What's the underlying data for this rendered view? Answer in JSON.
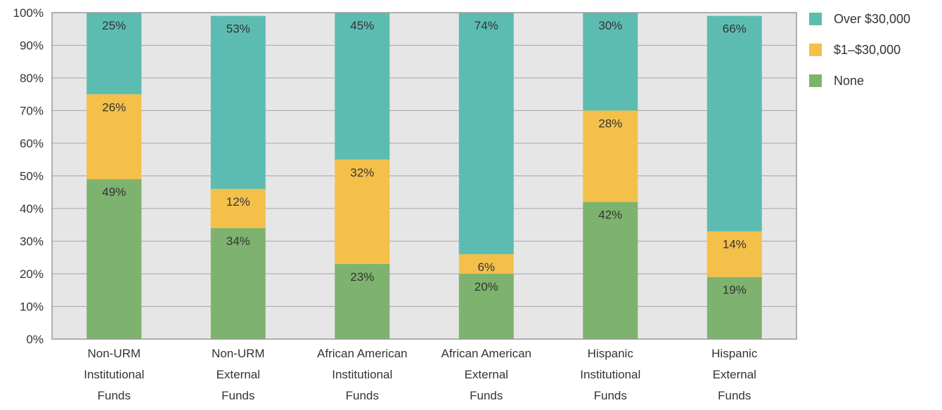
{
  "chart_data": {
    "type": "bar",
    "stacked": true,
    "categories": [
      [
        "Non-URM",
        "Institutional",
        "Funds"
      ],
      [
        "Non-URM",
        "External",
        "Funds"
      ],
      [
        "African American",
        "Institutional",
        "Funds"
      ],
      [
        "African American",
        "External",
        "Funds"
      ],
      [
        "Hispanic",
        "Institutional",
        "Funds"
      ],
      [
        "Hispanic",
        "External",
        "Funds"
      ]
    ],
    "series": [
      {
        "name": "None",
        "color": "#7db36e",
        "values": [
          49,
          34,
          23,
          20,
          42,
          19
        ],
        "labels": [
          "49%",
          "34%",
          "23%",
          "20%",
          "42%",
          "19%"
        ]
      },
      {
        "name": "$1–$30,000",
        "color": "#f4c04a",
        "values": [
          26,
          12,
          32,
          6,
          28,
          14
        ],
        "labels": [
          "26%",
          "12%",
          "32%",
          "6%",
          "28%",
          "14%"
        ]
      },
      {
        "name": "Over $30,000",
        "color": "#5dbcb1",
        "values": [
          25,
          53,
          45,
          74,
          30,
          66
        ],
        "labels": [
          "25%",
          "53%",
          "45%",
          "74%",
          "30%",
          "66%"
        ]
      }
    ],
    "legend_order": [
      "Over $30,000",
      "$1–$30,000",
      "None"
    ],
    "legend_position": "right",
    "ylim": [
      0,
      100
    ],
    "yticks": [
      0,
      10,
      20,
      30,
      40,
      50,
      60,
      70,
      80,
      90,
      100
    ],
    "ytick_labels": [
      "0%",
      "10%",
      "20%",
      "30%",
      "40%",
      "50%",
      "60%",
      "70%",
      "80%",
      "90%",
      "100%"
    ],
    "grid": true,
    "plot_background": "#e6e6e6",
    "grid_color": "#a6a6a6"
  }
}
